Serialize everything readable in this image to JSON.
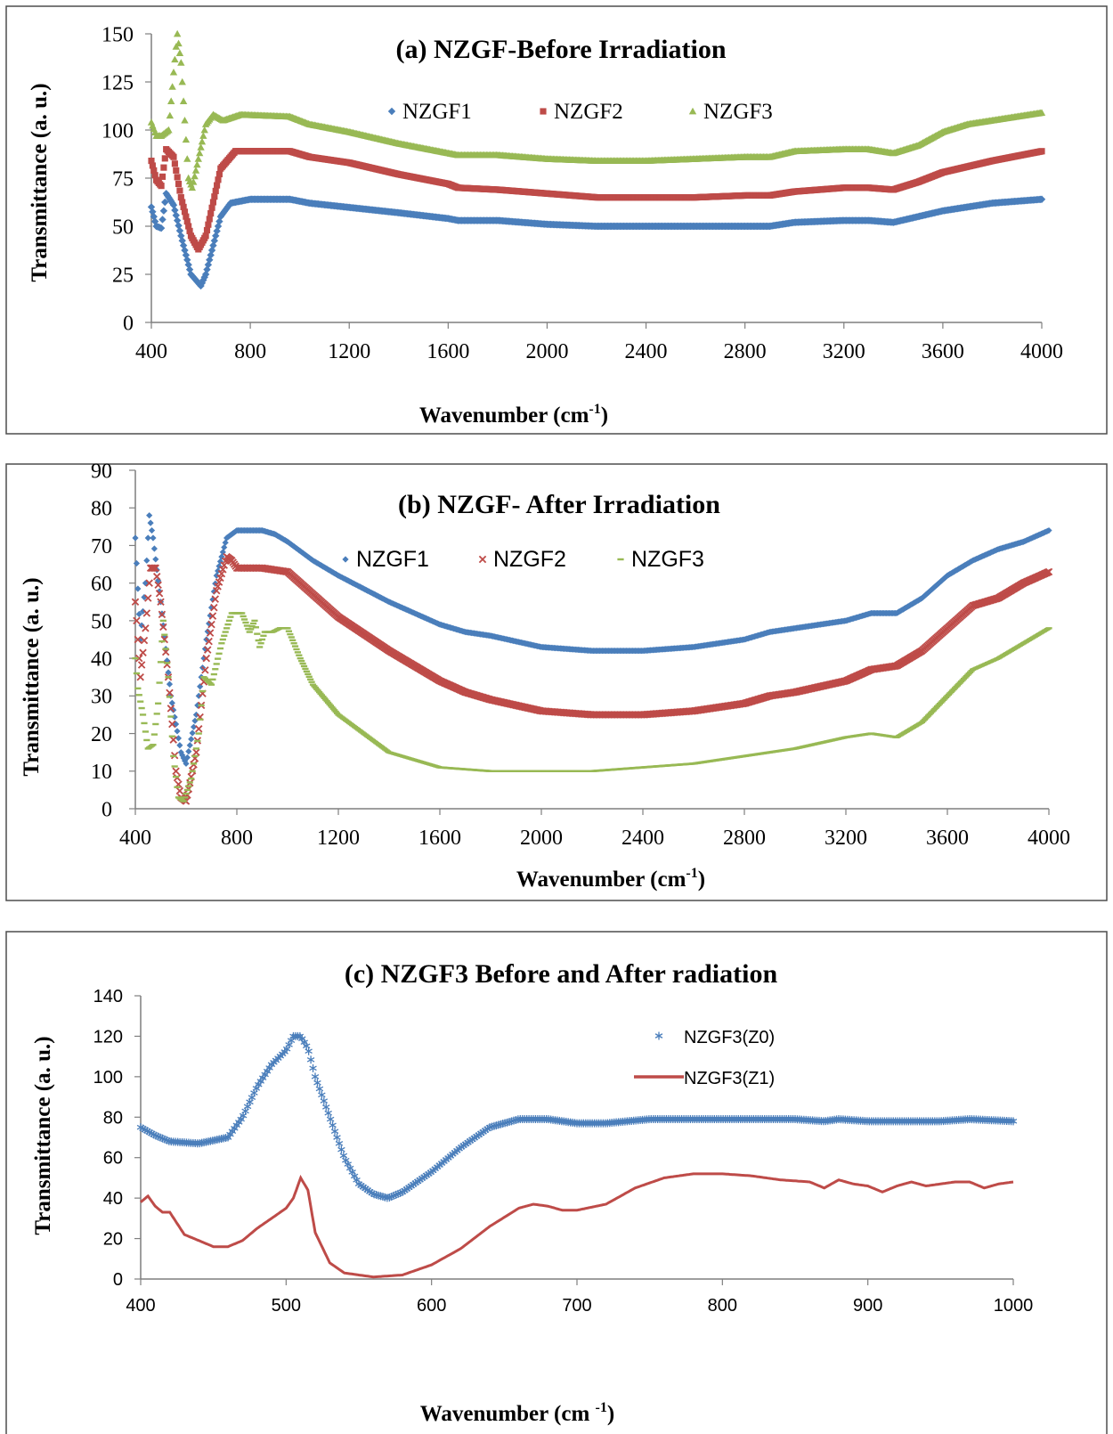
{
  "chart_data": [
    {
      "type": "line",
      "title": "(a) NZGF-Before Irradiation",
      "xlabel_main": "Wavenumber (cm",
      "xlabel_sup": "-1",
      "xlabel_end": ")",
      "ylabel": "Transmittance (a. u.)",
      "xlim": [
        400,
        4000
      ],
      "ylim": [
        0,
        150
      ],
      "xticks": [
        400,
        800,
        1200,
        1600,
        2000,
        2400,
        2800,
        3200,
        3600,
        4000
      ],
      "yticks": [
        0,
        25,
        50,
        75,
        100,
        125,
        150
      ],
      "legend_position": "top-center",
      "series": [
        {
          "name": "NZGF1",
          "color": "#4a7ebb",
          "marker": "diamond",
          "x": [
            400,
            420,
            440,
            460,
            490,
            520,
            560,
            600,
            620,
            680,
            720,
            800,
            960,
            1040,
            1400,
            1600,
            1640,
            1800,
            2000,
            2200,
            2400,
            2600,
            2800,
            2900,
            3000,
            3200,
            3300,
            3400,
            3500,
            3600,
            3700,
            3800,
            4000
          ],
          "y": [
            60,
            50,
            49,
            67,
            61,
            45,
            25,
            19,
            25,
            55,
            62,
            64,
            64,
            62,
            57,
            54,
            53,
            53,
            51,
            50,
            50,
            50,
            50,
            50,
            52,
            53,
            53,
            52,
            55,
            58,
            60,
            62,
            64
          ]
        },
        {
          "name": "NZGF2",
          "color": "#be4b48",
          "marker": "square",
          "x": [
            400,
            420,
            440,
            460,
            490,
            520,
            560,
            590,
            620,
            680,
            740,
            800,
            960,
            1040,
            1200,
            1400,
            1600,
            1640,
            1800,
            2000,
            2200,
            2400,
            2600,
            2800,
            2900,
            3000,
            3200,
            3300,
            3400,
            3500,
            3600,
            3700,
            3800,
            4000
          ],
          "y": [
            84,
            74,
            71,
            90,
            86,
            65,
            45,
            38,
            45,
            80,
            89,
            89,
            89,
            86,
            83,
            77,
            72,
            70,
            69,
            67,
            65,
            65,
            65,
            66,
            66,
            68,
            70,
            70,
            69,
            73,
            78,
            81,
            84,
            89
          ]
        },
        {
          "name": "NZGF3",
          "color": "#98b954",
          "marker": "triangle",
          "x": [
            400,
            420,
            440,
            470,
            490,
            505,
            520,
            550,
            565,
            620,
            650,
            690,
            760,
            960,
            1040,
            1200,
            1400,
            1600,
            1640,
            1800,
            2000,
            2200,
            2400,
            2600,
            2800,
            2900,
            3000,
            3200,
            3300,
            3400,
            3500,
            3600,
            3700,
            3800,
            4000
          ],
          "y": [
            104,
            97,
            97,
            100,
            130,
            150,
            135,
            75,
            70,
            103,
            108,
            105,
            108,
            107,
            103,
            99,
            93,
            88,
            87,
            87,
            85,
            84,
            84,
            85,
            86,
            86,
            89,
            90,
            90,
            88,
            92,
            99,
            103,
            105,
            109
          ]
        }
      ]
    },
    {
      "type": "line",
      "title": "(b) NZGF- After Irradiation",
      "xlabel_main": "Wavenumber (cm",
      "xlabel_sup": "-1",
      "xlabel_end": ")",
      "ylabel": "Transmittance (a. u.)",
      "xlim": [
        400,
        4000
      ],
      "ylim": [
        0,
        90
      ],
      "xticks": [
        400,
        800,
        1200,
        1600,
        2000,
        2400,
        2800,
        3200,
        3600,
        4000
      ],
      "yticks": [
        0,
        10,
        20,
        30,
        40,
        50,
        60,
        70,
        80,
        90
      ],
      "legend_position": "top-center",
      "series": [
        {
          "name": "NZGF1",
          "color": "#4a7ebb",
          "marker": "diamond",
          "x": [
            400,
            420,
            440,
            455,
            470,
            500,
            540,
            580,
            600,
            640,
            680,
            720,
            760,
            800,
            900,
            950,
            1000,
            1100,
            1200,
            1400,
            1600,
            1700,
            1800,
            2000,
            2200,
            2400,
            2600,
            2800,
            2900,
            3000,
            3200,
            3300,
            3400,
            3500,
            3600,
            3700,
            3800,
            3900,
            4000
          ],
          "y": [
            72,
            45,
            60,
            78,
            72,
            55,
            30,
            15,
            12,
            25,
            45,
            62,
            72,
            74,
            74,
            73,
            71,
            66,
            62,
            55,
            49,
            47,
            46,
            43,
            42,
            42,
            43,
            45,
            47,
            48,
            50,
            52,
            52,
            56,
            62,
            66,
            69,
            71,
            74
          ]
        },
        {
          "name": "NZGF2",
          "color": "#be4b48",
          "marker": "x",
          "x": [
            400,
            420,
            440,
            460,
            480,
            500,
            530,
            560,
            580,
            600,
            640,
            680,
            720,
            760,
            780,
            800,
            900,
            1000,
            1100,
            1200,
            1400,
            1600,
            1700,
            1800,
            2000,
            2200,
            2400,
            2600,
            2800,
            2900,
            3000,
            3200,
            3300,
            3400,
            3500,
            3600,
            3700,
            3800,
            3900,
            4000
          ],
          "y": [
            55,
            35,
            48,
            64,
            64,
            55,
            35,
            10,
            3,
            2,
            15,
            40,
            58,
            67,
            66,
            64,
            64,
            63,
            57,
            51,
            42,
            34,
            31,
            29,
            26,
            25,
            25,
            26,
            28,
            30,
            31,
            34,
            37,
            38,
            42,
            48,
            54,
            56,
            60,
            63
          ]
        },
        {
          "name": "NZGF3",
          "color": "#98b954",
          "marker": "dash",
          "x": [
            400,
            410,
            430,
            450,
            470,
            490,
            510,
            530,
            550,
            570,
            590,
            620,
            650,
            670,
            700,
            740,
            780,
            820,
            850,
            870,
            890,
            910,
            940,
            970,
            1000,
            1050,
            1100,
            1200,
            1400,
            1600,
            1800,
            2000,
            2200,
            2400,
            2600,
            2800,
            2900,
            3000,
            3200,
            3300,
            3400,
            3500,
            3600,
            3700,
            3800,
            3900,
            4000
          ],
          "y": [
            40,
            32,
            25,
            16,
            17,
            28,
            50,
            35,
            14,
            3,
            2,
            8,
            20,
            35,
            33,
            44,
            52,
            52,
            47,
            50,
            43,
            47,
            47,
            48,
            48,
            40,
            33,
            25,
            15,
            11,
            10,
            10,
            10,
            11,
            12,
            14,
            15,
            16,
            19,
            20,
            19,
            23,
            30,
            37,
            40,
            44,
            48
          ]
        }
      ]
    },
    {
      "type": "line",
      "title": "(c) NZGF3 Before and After radiation",
      "xlabel_main": "Wavenumber (cm ",
      "xlabel_sup": "-1",
      "xlabel_end": ")",
      "ylabel": "Transmittance (a. u.)",
      "xlim": [
        400,
        1000
      ],
      "ylim": [
        0,
        140
      ],
      "xticks": [
        400,
        500,
        600,
        700,
        800,
        900,
        1000
      ],
      "yticks": [
        0,
        20,
        40,
        60,
        80,
        100,
        120,
        140
      ],
      "legend_position": "right",
      "series": [
        {
          "name": "NZGF3(Z0)",
          "color": "#4a7ebb",
          "marker": "asterisk",
          "x": [
            400,
            410,
            420,
            440,
            460,
            470,
            480,
            490,
            500,
            505,
            510,
            515,
            520,
            530,
            540,
            550,
            560,
            570,
            580,
            600,
            620,
            640,
            660,
            680,
            700,
            720,
            750,
            800,
            850,
            870,
            880,
            900,
            920,
            950,
            970,
            1000
          ],
          "y": [
            75,
            71,
            68,
            67,
            70,
            80,
            95,
            106,
            113,
            120,
            120,
            114,
            100,
            80,
            60,
            47,
            42,
            40,
            43,
            53,
            65,
            75,
            79,
            79,
            77,
            77,
            79,
            79,
            79,
            78,
            79,
            78,
            78,
            78,
            79,
            78
          ]
        },
        {
          "name": "NZGF3(Z1)",
          "color": "#be4b48",
          "marker": "line",
          "x": [
            400,
            405,
            410,
            415,
            420,
            430,
            440,
            450,
            460,
            470,
            480,
            490,
            500,
            505,
            510,
            515,
            520,
            530,
            540,
            550,
            560,
            580,
            600,
            620,
            640,
            660,
            670,
            680,
            690,
            700,
            720,
            740,
            760,
            780,
            800,
            820,
            840,
            860,
            870,
            880,
            890,
            900,
            910,
            920,
            930,
            940,
            950,
            960,
            970,
            980,
            990,
            1000
          ],
          "y": [
            38,
            41,
            36,
            33,
            33,
            22,
            19,
            16,
            16,
            19,
            25,
            30,
            35,
            40,
            50,
            44,
            23,
            8,
            3,
            2,
            1,
            2,
            7,
            15,
            26,
            35,
            37,
            36,
            34,
            34,
            37,
            45,
            50,
            52,
            52,
            51,
            49,
            48,
            45,
            49,
            47,
            46,
            43,
            46,
            48,
            46,
            47,
            48,
            48,
            45,
            47,
            48
          ]
        }
      ]
    }
  ]
}
